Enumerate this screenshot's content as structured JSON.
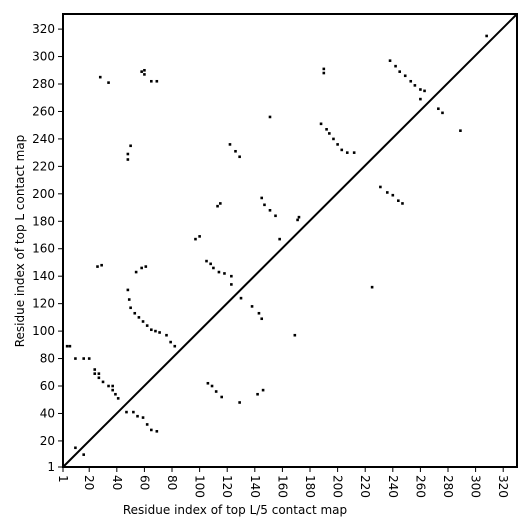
{
  "chart_data": {
    "type": "scatter",
    "x_label": "Residue index of top L/5 contact map",
    "y_label": "Residue index of top L contact map",
    "xlim": [
      1,
      330
    ],
    "ylim": [
      1,
      331
    ],
    "xticks": [
      1,
      20,
      40,
      60,
      80,
      100,
      120,
      140,
      160,
      180,
      200,
      220,
      240,
      260,
      280,
      300,
      320
    ],
    "yticks": [
      1,
      20,
      40,
      60,
      80,
      100,
      120,
      140,
      160,
      180,
      200,
      220,
      240,
      260,
      280,
      300,
      320
    ],
    "diagonal": true,
    "series": [
      {
        "color": "#000000",
        "x": [
          4,
          6,
          10,
          16,
          20,
          24,
          24,
          27,
          27,
          30,
          34,
          37,
          37,
          39,
          41,
          10,
          16,
          47,
          52,
          55,
          59,
          62,
          65,
          69,
          48,
          49,
          50,
          53,
          56,
          59,
          62,
          65,
          68,
          71,
          76,
          79,
          82,
          54,
          58,
          61,
          26,
          29,
          97,
          100,
          105,
          108,
          110,
          114,
          118,
          123,
          123,
          113,
          115,
          122,
          126,
          129,
          145,
          147,
          151,
          155,
          158,
          48,
          48,
          50,
          28,
          34,
          60,
          60,
          58,
          65,
          69,
          171,
          172,
          190,
          190,
          188,
          192,
          194,
          197,
          200,
          203,
          207,
          212,
          238,
          242,
          245,
          249,
          253,
          256,
          260,
          263,
          260,
          273,
          276,
          289,
          308,
          151
        ],
        "values": [
          89,
          89,
          80,
          80,
          80,
          72,
          69,
          69,
          66,
          63,
          60,
          60,
          57,
          54,
          51,
          15,
          10,
          41,
          41,
          38,
          37,
          32,
          28,
          27,
          130,
          123,
          117,
          113,
          110,
          107,
          104,
          101,
          100,
          99,
          97,
          92,
          89,
          143,
          146,
          147,
          147,
          148,
          167,
          169,
          151,
          149,
          146,
          143,
          142,
          140,
          134,
          191,
          193,
          236,
          231,
          227,
          197,
          192,
          188,
          184,
          167,
          225,
          229,
          235,
          285,
          281,
          287,
          290,
          289,
          282,
          282,
          181,
          183,
          291,
          288,
          251,
          247,
          244,
          240,
          236,
          232,
          230,
          230,
          297,
          293,
          289,
          286,
          282,
          279,
          276,
          275,
          269,
          262,
          259,
          246,
          315,
          256
        ]
      },
      {
        "color": "#000000",
        "x": [
          106,
          109,
          112,
          116,
          129,
          146,
          142,
          130,
          138,
          143,
          145,
          169,
          225,
          231,
          236,
          240,
          244,
          247
        ],
        "values": [
          62,
          60,
          56,
          52,
          48,
          57,
          54,
          124,
          118,
          113,
          109,
          97,
          132,
          205,
          201,
          199,
          195,
          193
        ]
      }
    ]
  }
}
